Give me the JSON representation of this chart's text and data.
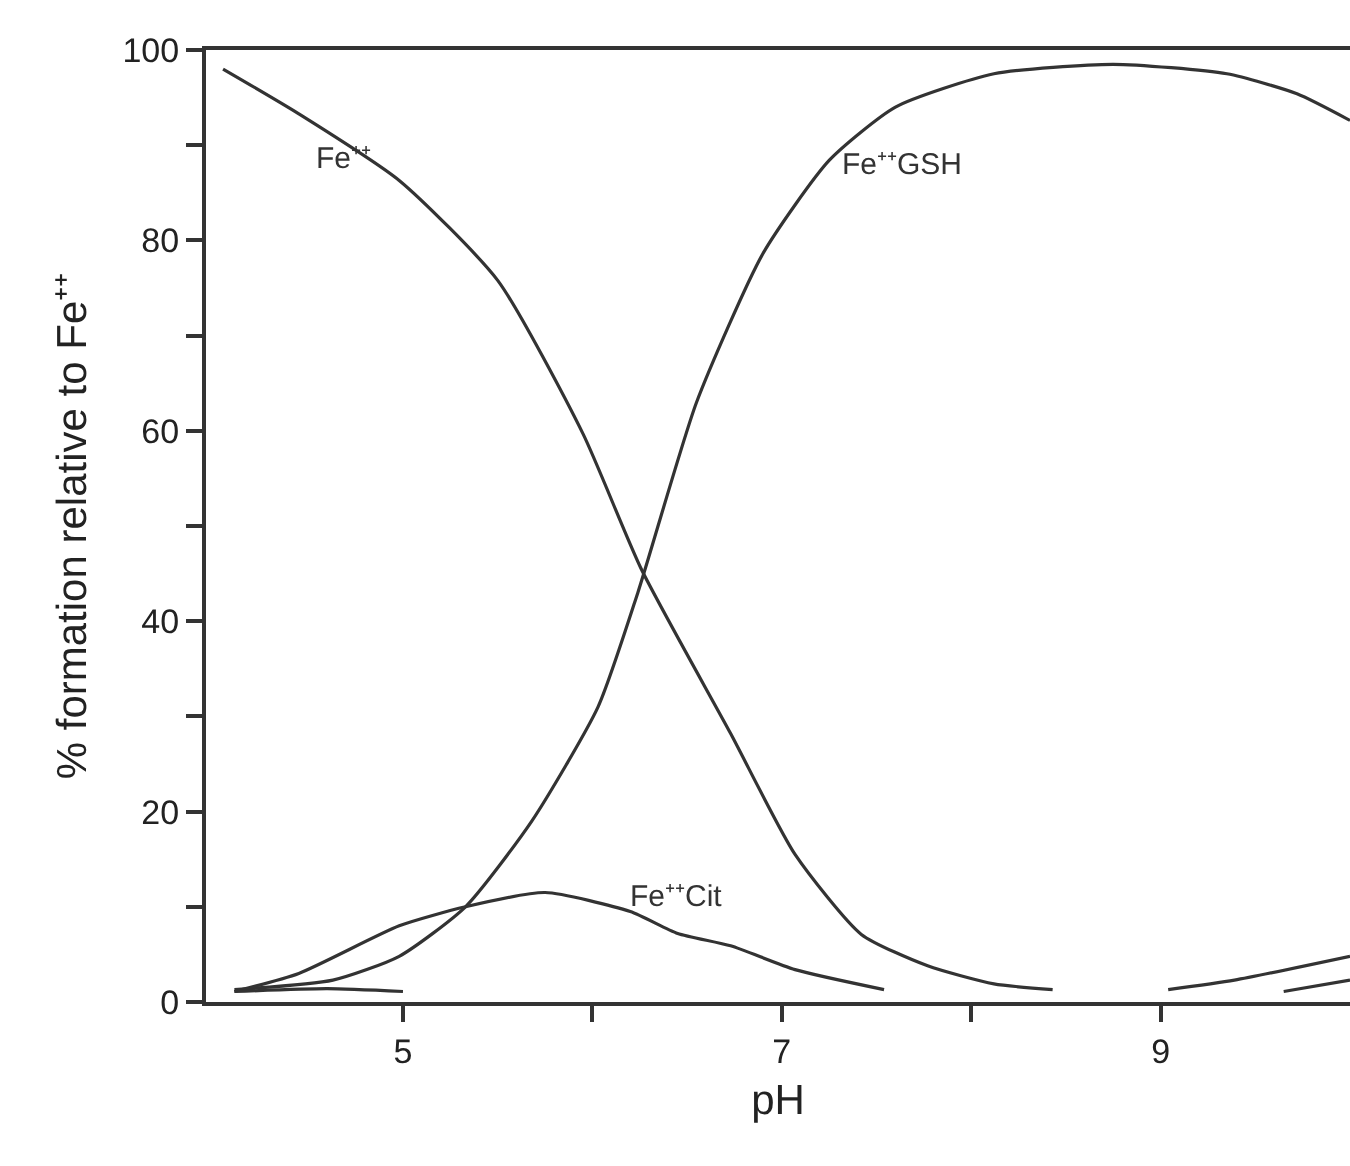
{
  "chart_data": {
    "type": "line",
    "xlabel": "pH",
    "ylabel": "% formation relative to Fe⁺⁺",
    "xlim": [
      3.96,
      10
    ],
    "xticks": [
      5,
      {
        "value": 6,
        "label": null
      },
      7,
      {
        "value": 8,
        "label": null
      },
      9
    ],
    "ylim": [
      0,
      100
    ],
    "yticks": [
      0,
      {
        "value": 10,
        "label": null
      },
      20,
      {
        "value": 30,
        "label": null
      },
      40,
      {
        "value": 50,
        "label": null
      },
      60,
      {
        "value": 70,
        "label": null
      },
      80,
      {
        "value": 90,
        "label": null
      },
      100
    ],
    "grid": false,
    "legend": false,
    "marker": "none",
    "line_style": "solid",
    "series": [
      {
        "name": "Fe⁺⁺",
        "color": "#333333",
        "x": [
          4.05,
          4.45,
          4.98,
          5.5,
          5.95,
          6.26,
          6.73,
          7.07,
          7.42,
          7.77,
          8.12,
          8.43
        ],
        "values": [
          98,
          93.3,
          86.3,
          75.8,
          59.7,
          45.4,
          28.2,
          15.5,
          7.1,
          3.8,
          1.9,
          1.3
        ]
      },
      {
        "name": "Fe⁺⁺GSH",
        "color": "#333333",
        "x": [
          4.11,
          4.63,
          4.98,
          5.33,
          5.68,
          6.03,
          6.24,
          6.55,
          6.9,
          7.25,
          7.6,
          8.12,
          8.75,
          9.35,
          9.72,
          10
        ],
        "values": [
          1.3,
          2.3,
          4.8,
          10,
          19,
          31,
          43,
          63,
          78.6,
          88.4,
          94,
          97.5,
          98.5,
          97.5,
          95.4,
          92.6
        ]
      },
      {
        "name": "Fe⁺⁺Cit",
        "color": "#333333",
        "x": [
          4.11,
          4.45,
          4.98,
          5.33,
          5.75,
          6.2,
          6.45,
          6.73,
          7.07,
          7.54
        ],
        "values": [
          1.1,
          3,
          8,
          10,
          11.5,
          9.5,
          7.2,
          5.9,
          3.4,
          1.3
        ]
      },
      {
        "color": "#333333",
        "x": [
          4.11,
          4.6,
          5.0
        ],
        "values": [
          1.1,
          1.4,
          1.1
        ]
      },
      {
        "color": "#333333",
        "x": [
          9.04,
          9.39,
          10
        ],
        "values": [
          1.3,
          2.3,
          4.8
        ]
      },
      {
        "color": "#333333",
        "x": [
          9.65,
          10
        ],
        "values": [
          1.1,
          2.3
        ]
      }
    ]
  }
}
